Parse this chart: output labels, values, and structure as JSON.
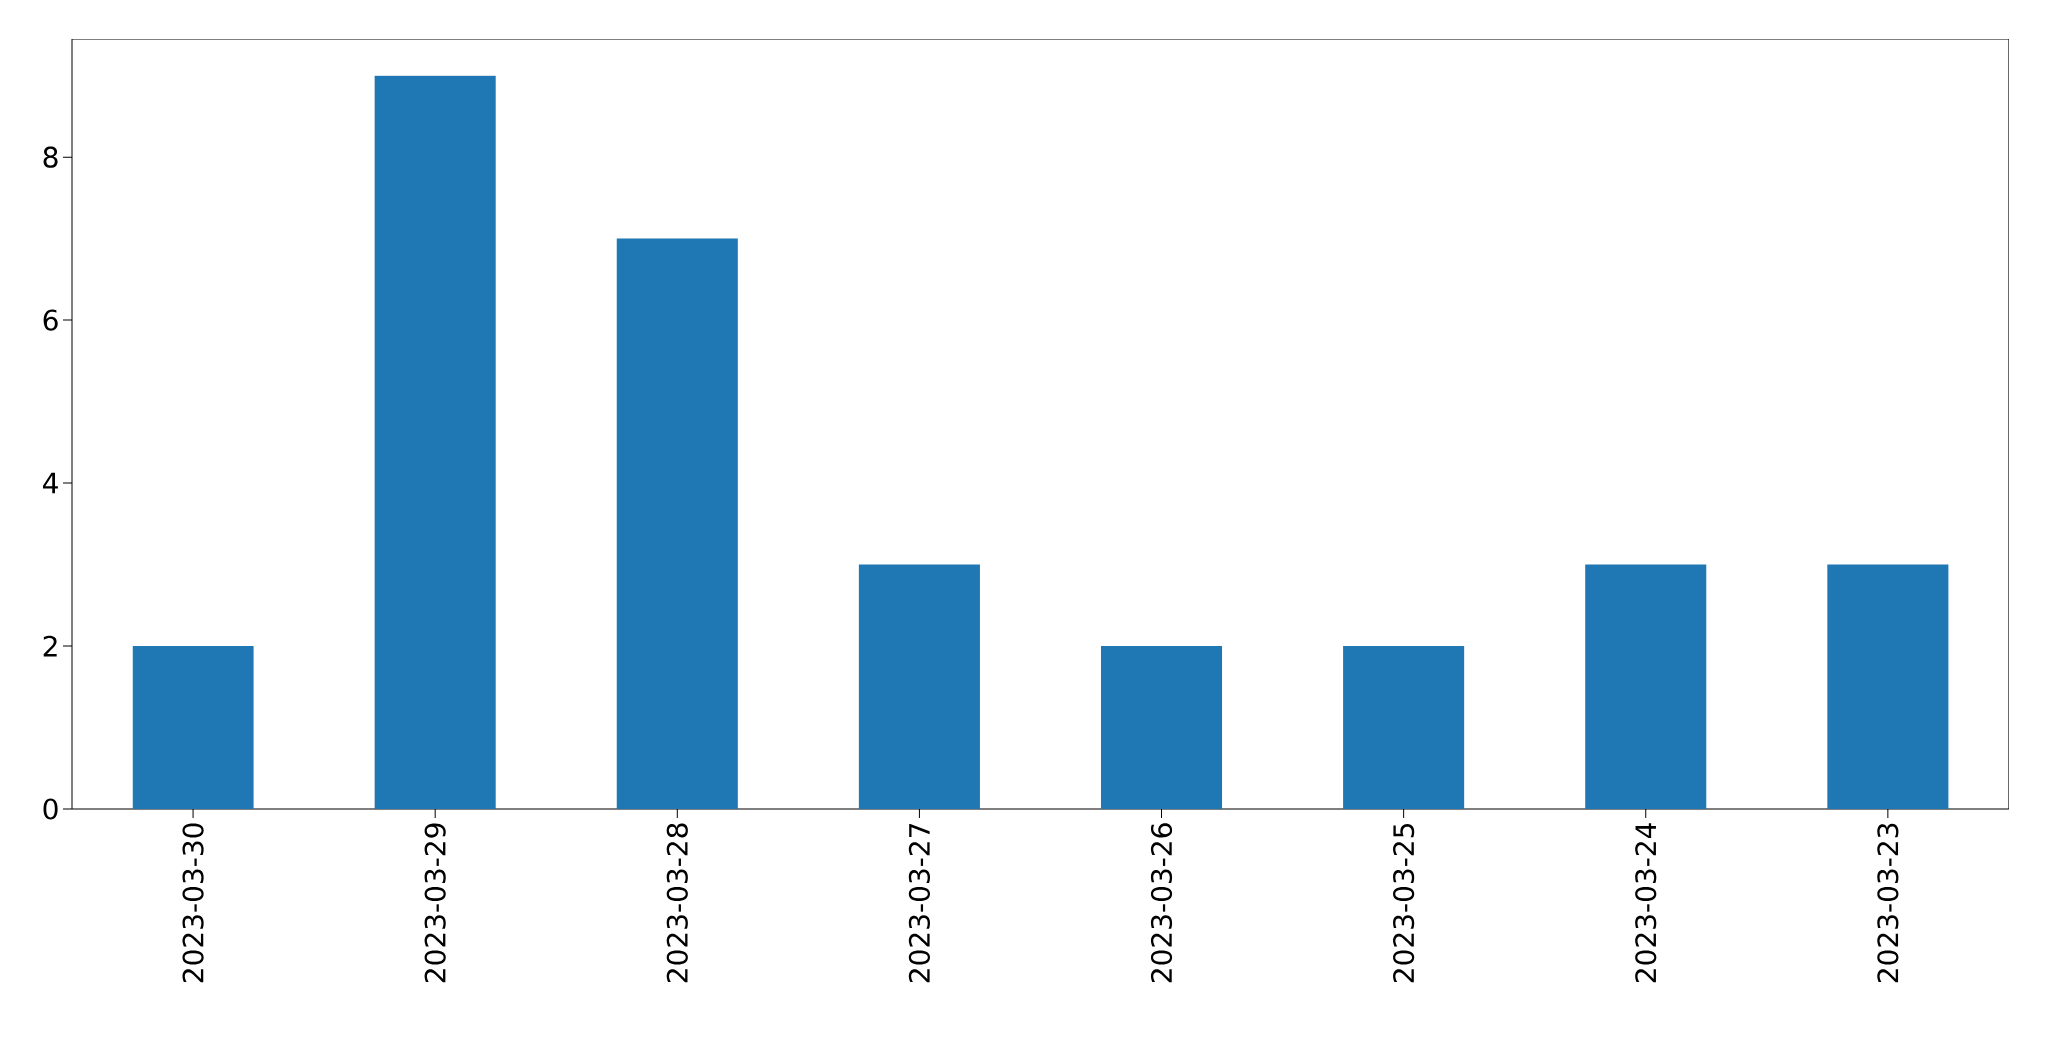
{
  "chart_data": {
    "type": "bar",
    "categories": [
      "2023-03-30",
      "2023-03-29",
      "2023-03-28",
      "2023-03-27",
      "2023-03-26",
      "2023-03-25",
      "2023-03-24",
      "2023-03-23"
    ],
    "values": [
      2,
      9,
      7,
      3,
      2,
      2,
      3,
      3
    ],
    "color": "#1f77b4",
    "ylim": [
      0,
      9.45
    ],
    "yticks": [
      0,
      2,
      4,
      6,
      8
    ],
    "grid": false
  }
}
